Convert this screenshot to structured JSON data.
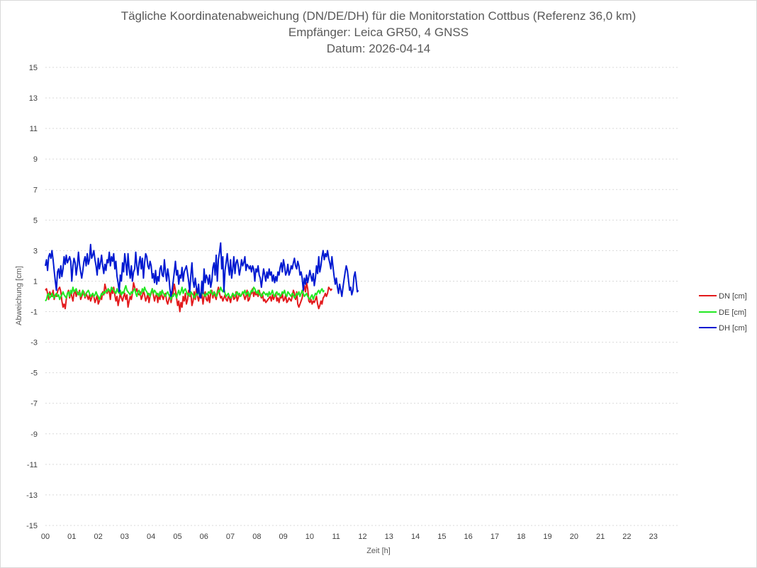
{
  "chart_data": {
    "type": "line",
    "title": [
      "Tägliche Koordinatenabweichung (DN/DE/DH) für die Monitorstation Cottbus (Referenz 36,0 km)",
      "Empfänger: Leica GR50, 4 GNSS",
      "Datum: 2026-04-14"
    ],
    "xlabel": "Zeit [h]",
    "ylabel": "Abweichung [cm]",
    "xlim": [
      0,
      24
    ],
    "ylim": [
      -15,
      15
    ],
    "x_ticks": [
      "00",
      "01",
      "02",
      "03",
      "04",
      "05",
      "06",
      "07",
      "08",
      "09",
      "10",
      "11",
      "12",
      "13",
      "14",
      "15",
      "16",
      "17",
      "18",
      "19",
      "20",
      "21",
      "22",
      "23"
    ],
    "y_ticks": [
      15,
      13,
      11,
      9,
      7,
      5,
      3,
      1,
      -1,
      -3,
      -5,
      -7,
      -9,
      -11,
      -13,
      -15
    ],
    "grid": true,
    "legend_position": "right",
    "x_step_hours": 0.0417,
    "series": [
      {
        "name": "DN [cm]",
        "color": "#e31a1c",
        "values": [
          0.4,
          0.5,
          0.2,
          -0.2,
          0.3,
          0.1,
          0.0,
          0.4,
          -0.2,
          0.1,
          0.0,
          0.3,
          0.5,
          0.6,
          0.3,
          -0.3,
          -0.7,
          -0.5,
          -0.8,
          -0.2,
          0.2,
          0.4,
          -0.1,
          0.3,
          0.0,
          -0.3,
          0.2,
          0.4,
          0.0,
          0.3,
          0.1,
          0.4,
          -0.2,
          0.0,
          0.2,
          0.3,
          -0.1,
          0.2,
          0.0,
          -0.2,
          0.1,
          -0.3,
          -0.1,
          0.2,
          0.0,
          -0.4,
          -0.2,
          0.1,
          -0.5,
          -0.3,
          0.0,
          -0.2,
          0.3,
          0.1,
          0.8,
          0.5,
          0.2,
          0.4,
          0.3,
          -0.2,
          0.5,
          0.2,
          0.6,
          0.1,
          -0.3,
          0.0,
          -0.6,
          -0.2,
          0.2,
          -0.1,
          -0.3,
          0.0,
          0.2,
          -0.2,
          0.1,
          -0.7,
          -0.3,
          0.0,
          -0.2,
          0.2,
          0.9,
          0.6,
          0.3,
          0.5,
          0.2,
          0.1,
          0.3,
          -0.2,
          0.0,
          0.4,
          0.1,
          -0.3,
          -0.1,
          0.2,
          -0.4,
          0.0,
          0.2,
          0.5,
          0.1,
          -0.3,
          0.0,
          0.2,
          -0.4,
          0.1,
          -0.2,
          0.3,
          0.0,
          -0.2,
          0.1,
          0.2,
          -0.3,
          -0.5,
          -0.2,
          0.1,
          -0.4,
          0.0,
          0.3,
          0.8,
          0.4,
          -0.1,
          -0.6,
          -0.3,
          -1.0,
          -0.4,
          -0.7,
          0.0,
          -0.3,
          0.2,
          -0.5,
          -0.2,
          0.4,
          0.0,
          0.2,
          -0.6,
          -0.3,
          0.3,
          -0.2,
          0.5,
          0.0,
          -0.3,
          0.1,
          -0.1,
          0.2,
          -0.5,
          0.0,
          0.3,
          -0.2,
          -0.3,
          0.1,
          -0.4,
          0.2,
          0.4,
          -0.1,
          0.3,
          0.0,
          -0.2,
          0.3,
          0.6,
          0.2,
          -0.1,
          0.0,
          -0.3,
          -0.1,
          0.1,
          -0.2,
          -0.3,
          0.0,
          -0.1,
          -0.4,
          0.0,
          0.2,
          -0.2,
          -0.1,
          0.3,
          -0.3,
          -0.1,
          0.2,
          0.0,
          0.1,
          0.3,
          0.1,
          -0.2,
          0.0,
          0.4,
          -0.3,
          -0.2,
          0.1,
          0.2,
          0.5,
          0.0,
          0.3,
          0.1,
          0.2,
          0.0,
          0.4,
          0.1,
          -0.1,
          0.2,
          -0.3,
          -0.2,
          -0.4,
          -0.3,
          -0.2,
          -0.1,
          0.0,
          -0.3,
          0.1,
          -0.2,
          0.0,
          0.2,
          -0.3,
          -0.1,
          -0.4,
          0.0,
          -0.1,
          0.2,
          -0.3,
          -0.2,
          0.1,
          -0.4,
          -0.3,
          -0.1,
          -0.2,
          -0.3,
          0.0,
          0.4,
          0.2,
          -0.2,
          0.3,
          -0.5,
          -0.7,
          -0.5,
          -0.3,
          -0.1,
          0.4,
          0.7,
          0.3,
          0.9,
          0.5,
          -0.3,
          -0.4,
          -0.2,
          -0.5,
          -0.3,
          -0.4,
          -0.2,
          0.0,
          -0.5,
          -0.8,
          -0.6,
          -0.3,
          -0.5,
          -0.1,
          0.0,
          0.2,
          0.0,
          0.2,
          0.6,
          0.5,
          0.4,
          0.5
        ]
      },
      {
        "name": "DE [cm]",
        "color": "#22e822",
        "values": [
          -0.3,
          -0.2,
          0.1,
          0.2,
          -0.1,
          0.0,
          0.2,
          0.0,
          -0.1,
          0.1,
          0.2,
          0.0,
          0.1,
          -0.2,
          0.0,
          0.1,
          0.3,
          0.1,
          0.0,
          -0.1,
          0.2,
          0.3,
          0.0,
          0.4,
          0.2,
          0.6,
          0.3,
          0.4,
          0.5,
          0.2,
          0.1,
          0.3,
          0.0,
          0.2,
          0.4,
          0.1,
          0.0,
          0.2,
          0.3,
          0.4,
          0.2,
          0.0,
          0.1,
          0.2,
          0.0,
          0.1,
          0.3,
          0.1,
          0.0,
          -0.2,
          0.0,
          0.2,
          0.1,
          0.3,
          0.2,
          0.4,
          0.3,
          0.5,
          0.4,
          0.3,
          0.6,
          0.5,
          0.4,
          0.3,
          0.2,
          0.5,
          0.3,
          0.2,
          0.4,
          0.1,
          0.3,
          0.2,
          0.5,
          0.7,
          0.4,
          0.3,
          0.2,
          0.1,
          0.3,
          0.2,
          0.4,
          0.5,
          0.2,
          0.0,
          0.3,
          0.4,
          0.1,
          0.2,
          0.5,
          0.3,
          0.6,
          0.4,
          0.3,
          0.1,
          0.2,
          0.0,
          0.3,
          0.5,
          0.2,
          0.4,
          0.3,
          0.1,
          0.2,
          0.0,
          0.3,
          0.1,
          0.4,
          0.2,
          0.1,
          0.0,
          0.2,
          0.3,
          0.1,
          0.0,
          -0.2,
          0.1,
          0.0,
          0.2,
          0.1,
          -0.1,
          0.2,
          0.4,
          0.1,
          0.3,
          0.6,
          0.2,
          0.4,
          0.5,
          0.3,
          0.1,
          0.2,
          0.0,
          0.3,
          0.2,
          0.1,
          -0.1,
          0.0,
          0.2,
          0.1,
          0.3,
          0.2,
          0.0,
          0.2,
          0.3,
          0.1,
          0.0,
          0.2,
          0.1,
          0.3,
          0.2,
          0.4,
          0.2,
          0.1,
          0.3,
          0.2,
          0.0,
          0.1,
          0.4,
          0.3,
          0.6,
          0.4,
          0.3,
          0.5,
          0.2,
          0.0,
          0.1,
          0.2,
          0.0,
          -0.1,
          0.0,
          0.2,
          0.1,
          0.0,
          0.2,
          0.3,
          0.1,
          0.2,
          0.0,
          0.1,
          0.3,
          0.2,
          0.4,
          0.1,
          0.2,
          0.3,
          0.0,
          0.2,
          0.4,
          0.3,
          0.6,
          0.5,
          0.3,
          0.2,
          0.4,
          0.1,
          0.2,
          0.0,
          0.1,
          0.3,
          0.2,
          0.1,
          0.2,
          0.0,
          0.3,
          0.1,
          0.2,
          0.4,
          0.1,
          0.0,
          0.2,
          0.3,
          0.1,
          0.2,
          0.0,
          0.1,
          0.3,
          0.2,
          0.4,
          0.1,
          0.0,
          0.3,
          0.2,
          0.1,
          0.0,
          0.2,
          0.1,
          -0.1,
          0.0,
          0.2,
          0.1,
          0.3,
          0.0,
          0.2,
          0.4,
          0.2,
          0.0,
          0.1,
          0.2,
          0.0,
          -0.1,
          -0.2,
          0.0,
          0.1,
          -0.2,
          0.0,
          0.2,
          0.1,
          0.3,
          0.4,
          0.2,
          0.4,
          0.5,
          0.3,
          0.4
        ]
      },
      {
        "name": "DH [cm]",
        "color": "#0019d1",
        "values": [
          2.0,
          2.4,
          1.7,
          2.6,
          2.8,
          2.5,
          3.0,
          2.4,
          1.7,
          1.0,
          0.4,
          1.6,
          1.8,
          1.2,
          2.0,
          1.3,
          1.8,
          2.6,
          2.1,
          2.7,
          2.2,
          2.4,
          2.6,
          2.3,
          1.0,
          2.0,
          2.5,
          2.2,
          1.4,
          2.0,
          2.9,
          2.1,
          1.6,
          1.2,
          1.7,
          2.3,
          2.6,
          2.0,
          2.8,
          2.1,
          2.4,
          3.4,
          2.5,
          2.7,
          3.0,
          2.4,
          2.0,
          1.4,
          2.5,
          1.8,
          2.2,
          2.7,
          2.0,
          1.5,
          2.1,
          1.7,
          2.4,
          2.2,
          2.9,
          2.0,
          2.6,
          2.3,
          2.8,
          1.8,
          2.3,
          1.3,
          0.9,
          0.3,
          1.4,
          1.0,
          2.2,
          1.6,
          2.8,
          2.2,
          1.4,
          2.8,
          1.8,
          1.2,
          2.0,
          1.0,
          1.6,
          1.8,
          2.9,
          2.0,
          1.4,
          2.2,
          2.6,
          1.8,
          2.5,
          1.2,
          2.2,
          2.8,
          2.6,
          2.0,
          1.8,
          2.3,
          2.0,
          1.2,
          1.5,
          0.9,
          1.7,
          0.8,
          1.3,
          1.0,
          1.8,
          2.0,
          1.4,
          1.3,
          2.4,
          1.6,
          1.0,
          1.8,
          1.3,
          0.5,
          0.0,
          0.4,
          1.0,
          1.6,
          2.3,
          1.4,
          1.7,
          0.8,
          1.4,
          1.2,
          1.9,
          1.0,
          1.6,
          1.8,
          2.0,
          1.5,
          1.0,
          0.3,
          1.4,
          2.2,
          1.0,
          0.6,
          1.2,
          0.6,
          0.2,
          0.8,
          0.0,
          -0.1,
          1.0,
          0.2,
          1.8,
          0.9,
          1.4,
          1.2,
          0.8,
          1.4,
          0.6,
          1.0,
          1.9,
          2.2,
          1.4,
          2.7,
          1.0,
          2.4,
          2.9,
          3.5,
          1.8,
          2.6,
          0.3,
          1.7,
          2.2,
          2.8,
          2.0,
          1.4,
          2.4,
          1.2,
          1.8,
          2.6,
          1.5,
          2.2,
          2.4,
          2.0,
          1.4,
          1.8,
          2.4,
          2.0,
          2.2,
          2.6,
          1.7,
          2.1,
          2.0,
          1.8,
          2.0,
          1.6,
          2.0,
          1.8,
          1.0,
          1.8,
          1.6,
          2.0,
          1.4,
          1.2,
          0.6,
          1.2,
          1.8,
          1.4,
          1.0,
          1.6,
          1.2,
          1.8,
          1.4,
          1.6,
          1.0,
          1.4,
          0.9,
          1.3,
          1.0,
          1.6,
          1.4,
          1.9,
          2.2,
          1.6,
          2.4,
          2.0,
          1.4,
          1.6,
          2.1,
          1.4,
          1.6,
          2.0,
          1.8,
          2.2,
          2.5,
          2.0,
          1.8,
          2.3,
          2.0,
          1.4,
          1.6,
          1.2,
          0.4,
          1.2,
          0.8,
          1.4,
          0.9,
          1.3,
          1.7,
          1.3,
          1.0,
          1.5,
          0.7,
          1.2,
          2.0,
          1.5,
          2.6,
          1.6,
          2.0,
          2.6,
          3.0,
          2.4,
          2.8,
          2.6,
          3.0,
          2.5,
          2.2,
          1.8,
          2.6,
          1.9,
          1.3,
          0.8,
          1.2,
          0.6,
          0.2,
          0.8,
          0.4,
          0.0,
          0.6,
          1.1,
          1.6,
          2.0,
          1.7,
          1.1,
          0.4,
          0.6,
          0.1,
          0.4,
          1.3,
          1.6,
          1.0,
          0.3,
          0.4
        ]
      }
    ]
  }
}
